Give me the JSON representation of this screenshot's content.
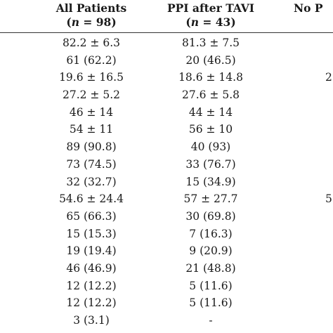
{
  "header": {
    "all_patients_label": "All Patients",
    "all_patients_n_prefix": "n",
    "all_patients_n_suffix": " = 98)",
    "ppi_label": "PPI after TAVI",
    "ppi_n_prefix": "n",
    "ppi_n_suffix": " = 43)",
    "no_ppi_label": "No P"
  },
  "rows": [
    {
      "all": "82.2 ± 6.3",
      "ppi": "81.3 ± 7.5",
      "nop": ""
    },
    {
      "all": "61 (62.2)",
      "ppi": "20 (46.5)",
      "nop": ""
    },
    {
      "all": "19.6 ± 16.5",
      "ppi": "18.6 ± 14.8",
      "nop": "2"
    },
    {
      "all": "27.2 ± 5.2",
      "ppi": "27.6 ± 5.8",
      "nop": ""
    },
    {
      "all": "46 ± 14",
      "ppi": "44 ± 14",
      "nop": ""
    },
    {
      "all": "54 ± 11",
      "ppi": "56 ± 10",
      "nop": ""
    },
    {
      "all": "89 (90.8)",
      "ppi": "40 (93)",
      "nop": ""
    },
    {
      "all": "73 (74.5)",
      "ppi": "33 (76.7)",
      "nop": ""
    },
    {
      "all": "32 (32.7)",
      "ppi": "15 (34.9)",
      "nop": ""
    },
    {
      "all": "54.6 ± 24.4",
      "ppi": "57 ± 27.7",
      "nop": "5"
    },
    {
      "all": "65 (66.3)",
      "ppi": "30 (69.8)",
      "nop": ""
    },
    {
      "all": "15 (15.3)",
      "ppi": "7 (16.3)",
      "nop": ""
    },
    {
      "all": "19 (19.4)",
      "ppi": "9 (20.9)",
      "nop": ""
    },
    {
      "all": "46 (46.9)",
      "ppi": "21 (48.8)",
      "nop": ""
    },
    {
      "all": "12 (12.2)",
      "ppi": "5 (11.6)",
      "nop": ""
    },
    {
      "all": "12 (12.2)",
      "ppi": "5 (11.6)",
      "nop": ""
    },
    {
      "all": "3 (3.1)",
      "ppi": "-",
      "nop": ""
    }
  ]
}
